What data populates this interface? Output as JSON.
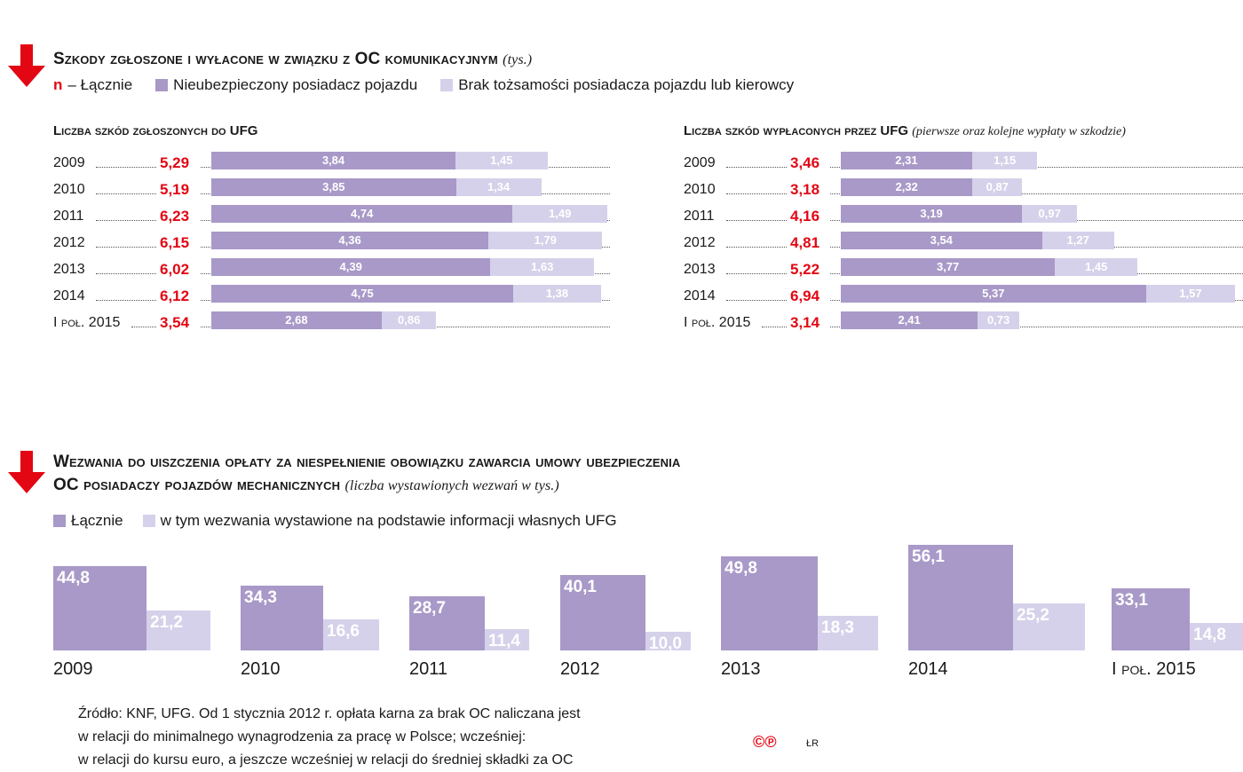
{
  "colors": {
    "accent": "#e30613",
    "dark": "#a899c8",
    "light": "#d6d1ea"
  },
  "section1": {
    "title": "Szkody zgłoszone i wyłacone w związku z OC komunikacyjnym",
    "unit": "(tys.)",
    "legend": {
      "total_marker": "n",
      "total": "– Łącznie",
      "dark": "Nieubezpieczony posiadacz pojazdu",
      "light": "Brak tożsamości posiadacza pojazdu lub kierowcy"
    }
  },
  "section2": {
    "title_line1": "Wezwania do uiszczenia opłaty za niespełnienie obowiązku zawarcia umowy ubezpieczenia",
    "title_line2": "OC posiadaczy pojazdów mechanicznych",
    "unit": "(liczba wystawionych wezwań w tys.)",
    "legend": {
      "dark": "Łącznie",
      "light": "w tym wezwania wystawione na podstawie informacji własnych UFG"
    }
  },
  "chart_data": [
    {
      "type": "bar",
      "orientation": "horizontal",
      "stacked": true,
      "title": "Liczba szkód zgłoszonych do UFG",
      "subtitle": "",
      "categories": [
        "2009",
        "2010",
        "2011",
        "2012",
        "2013",
        "2014",
        "I poł. 2015"
      ],
      "totals": [
        "5,29",
        "5,19",
        "6,23",
        "6,15",
        "6,02",
        "6,12",
        "3,54"
      ],
      "series": [
        {
          "name": "Nieubezpieczony posiadacz pojazdu",
          "values": [
            3.84,
            3.85,
            4.74,
            4.36,
            4.39,
            4.75,
            2.68
          ]
        },
        {
          "name": "Brak tożsamości posiadacza pojazdu lub kierowcy",
          "values": [
            1.45,
            1.34,
            1.49,
            1.79,
            1.63,
            1.38,
            0.86
          ]
        }
      ]
    },
    {
      "type": "bar",
      "orientation": "horizontal",
      "stacked": true,
      "title": "Liczba szkód wypłaconych przez UFG",
      "subtitle": "(pierwsze oraz kolejne wypłaty w szkodzie)",
      "categories": [
        "2009",
        "2010",
        "2011",
        "2012",
        "2013",
        "2014",
        "I poł. 2015"
      ],
      "totals": [
        "3,46",
        "3,18",
        "4,16",
        "4,81",
        "5,22",
        "6,94",
        "3,14"
      ],
      "series": [
        {
          "name": "Nieubezpieczony posiadacz pojazdu",
          "values": [
            2.31,
            2.32,
            3.19,
            3.54,
            3.77,
            5.37,
            2.41
          ]
        },
        {
          "name": "Brak tożsamości posiadacza pojazdu lub kierowcy",
          "values": [
            1.15,
            0.87,
            0.97,
            1.27,
            1.45,
            1.57,
            0.73
          ]
        }
      ]
    },
    {
      "type": "bar",
      "orientation": "vertical",
      "stacked": false,
      "categories": [
        "2009",
        "2010",
        "2011",
        "2012",
        "2013",
        "2014",
        "I poł. 2015"
      ],
      "series": [
        {
          "name": "Łącznie",
          "values": [
            44.8,
            34.3,
            28.7,
            40.1,
            49.8,
            56.1,
            33.1
          ]
        },
        {
          "name": "w tym wezwania wystawione na podstawie informacji własnych UFG",
          "values": [
            21.2,
            16.6,
            11.4,
            10.0,
            18.3,
            25.2,
            14.8
          ]
        }
      ]
    }
  ],
  "footer": {
    "source_lines": [
      "Źródło: KNF, UFG. Od 1 stycznia 2012 r. opłata karna za brak OC naliczana jest",
      "w relacji do minimalnego wynagrodzenia za pracę w Polsce; wcześniej:",
      "w relacji do kursu euro, a jeszcze wcześniej w relacji do średniej składki za OC"
    ],
    "copyright": "©℗",
    "author": "ŁR"
  }
}
